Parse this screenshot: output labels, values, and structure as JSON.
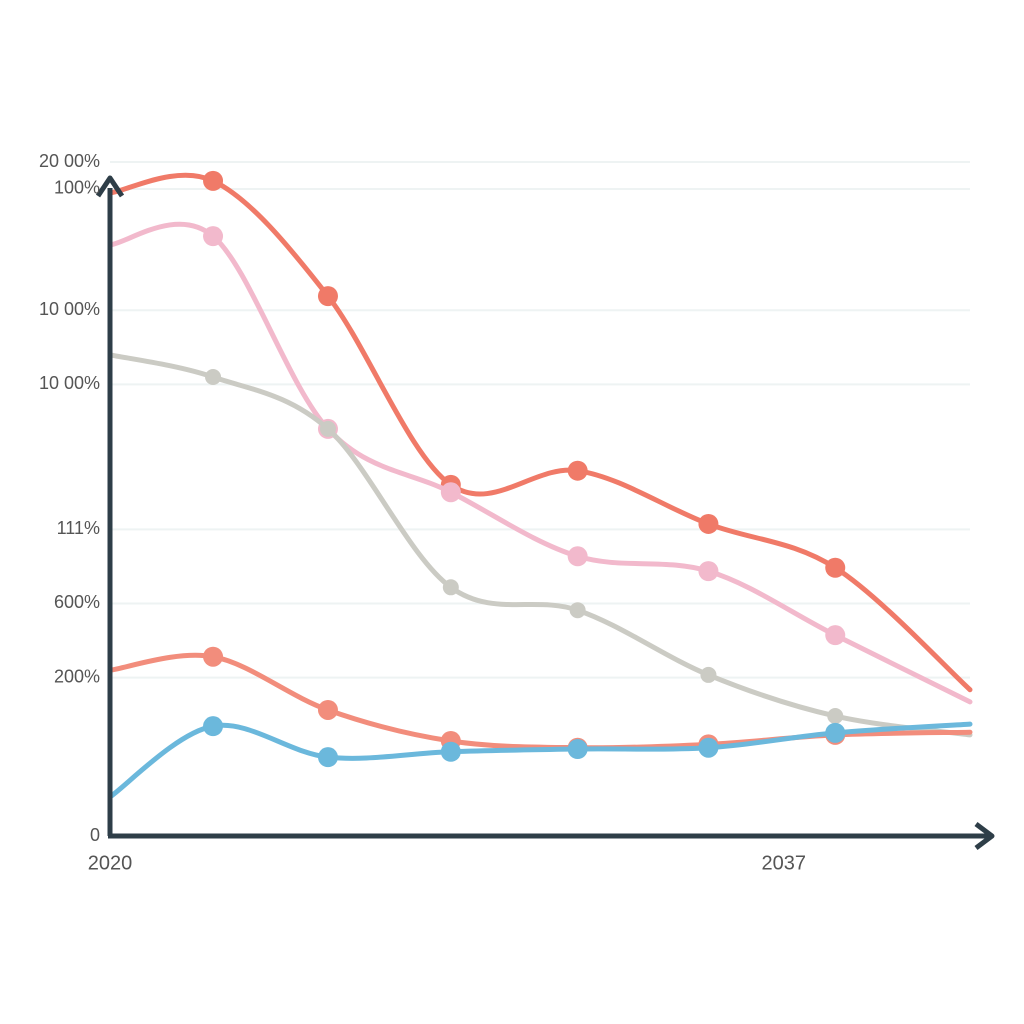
{
  "chart_data": {
    "type": "line",
    "x": [
      2020,
      2022.6,
      2025.5,
      2028.6,
      2031.8,
      2035.1,
      2038.3,
      2041.7
    ],
    "xlim": [
      2020,
      2041.7
    ],
    "xticks": [
      2020,
      2037
    ],
    "ylim": [
      0,
      100
    ],
    "yticks": [
      {
        "value": 100,
        "label": "20 00%"
      },
      {
        "value": 96,
        "label": "100%"
      },
      {
        "value": 78,
        "label": "10 00%"
      },
      {
        "value": 67,
        "label": "10 00%"
      },
      {
        "value": 45.5,
        "label": "111%"
      },
      {
        "value": 34.5,
        "label": "600%"
      },
      {
        "value": 23.5,
        "label": "200%"
      },
      0
    ],
    "grid": true,
    "series": [
      {
        "color": "#f07a68",
        "values": [
          95.4,
          97.2,
          80.1,
          52.1,
          54.2,
          46.3,
          39.8,
          21.7
        ]
      },
      {
        "color": "#f2b9cc",
        "values": [
          87.7,
          89.0,
          60.4,
          51.0,
          41.5,
          39.3,
          29.8,
          19.9
        ]
      },
      {
        "color": "#cbcbc4",
        "values": [
          71.4,
          68.1,
          60.4,
          36.9,
          33.5,
          23.9,
          17.8,
          15.0
        ]
      },
      {
        "color": "#f28d7c",
        "values": [
          24.6,
          26.6,
          18.7,
          14.1,
          13.1,
          13.6,
          15.0,
          15.4
        ]
      },
      {
        "color": "#6bb8dc",
        "values": [
          5.8,
          16.3,
          11.7,
          12.5,
          12.9,
          13.1,
          15.3,
          16.6
        ]
      }
    ]
  }
}
